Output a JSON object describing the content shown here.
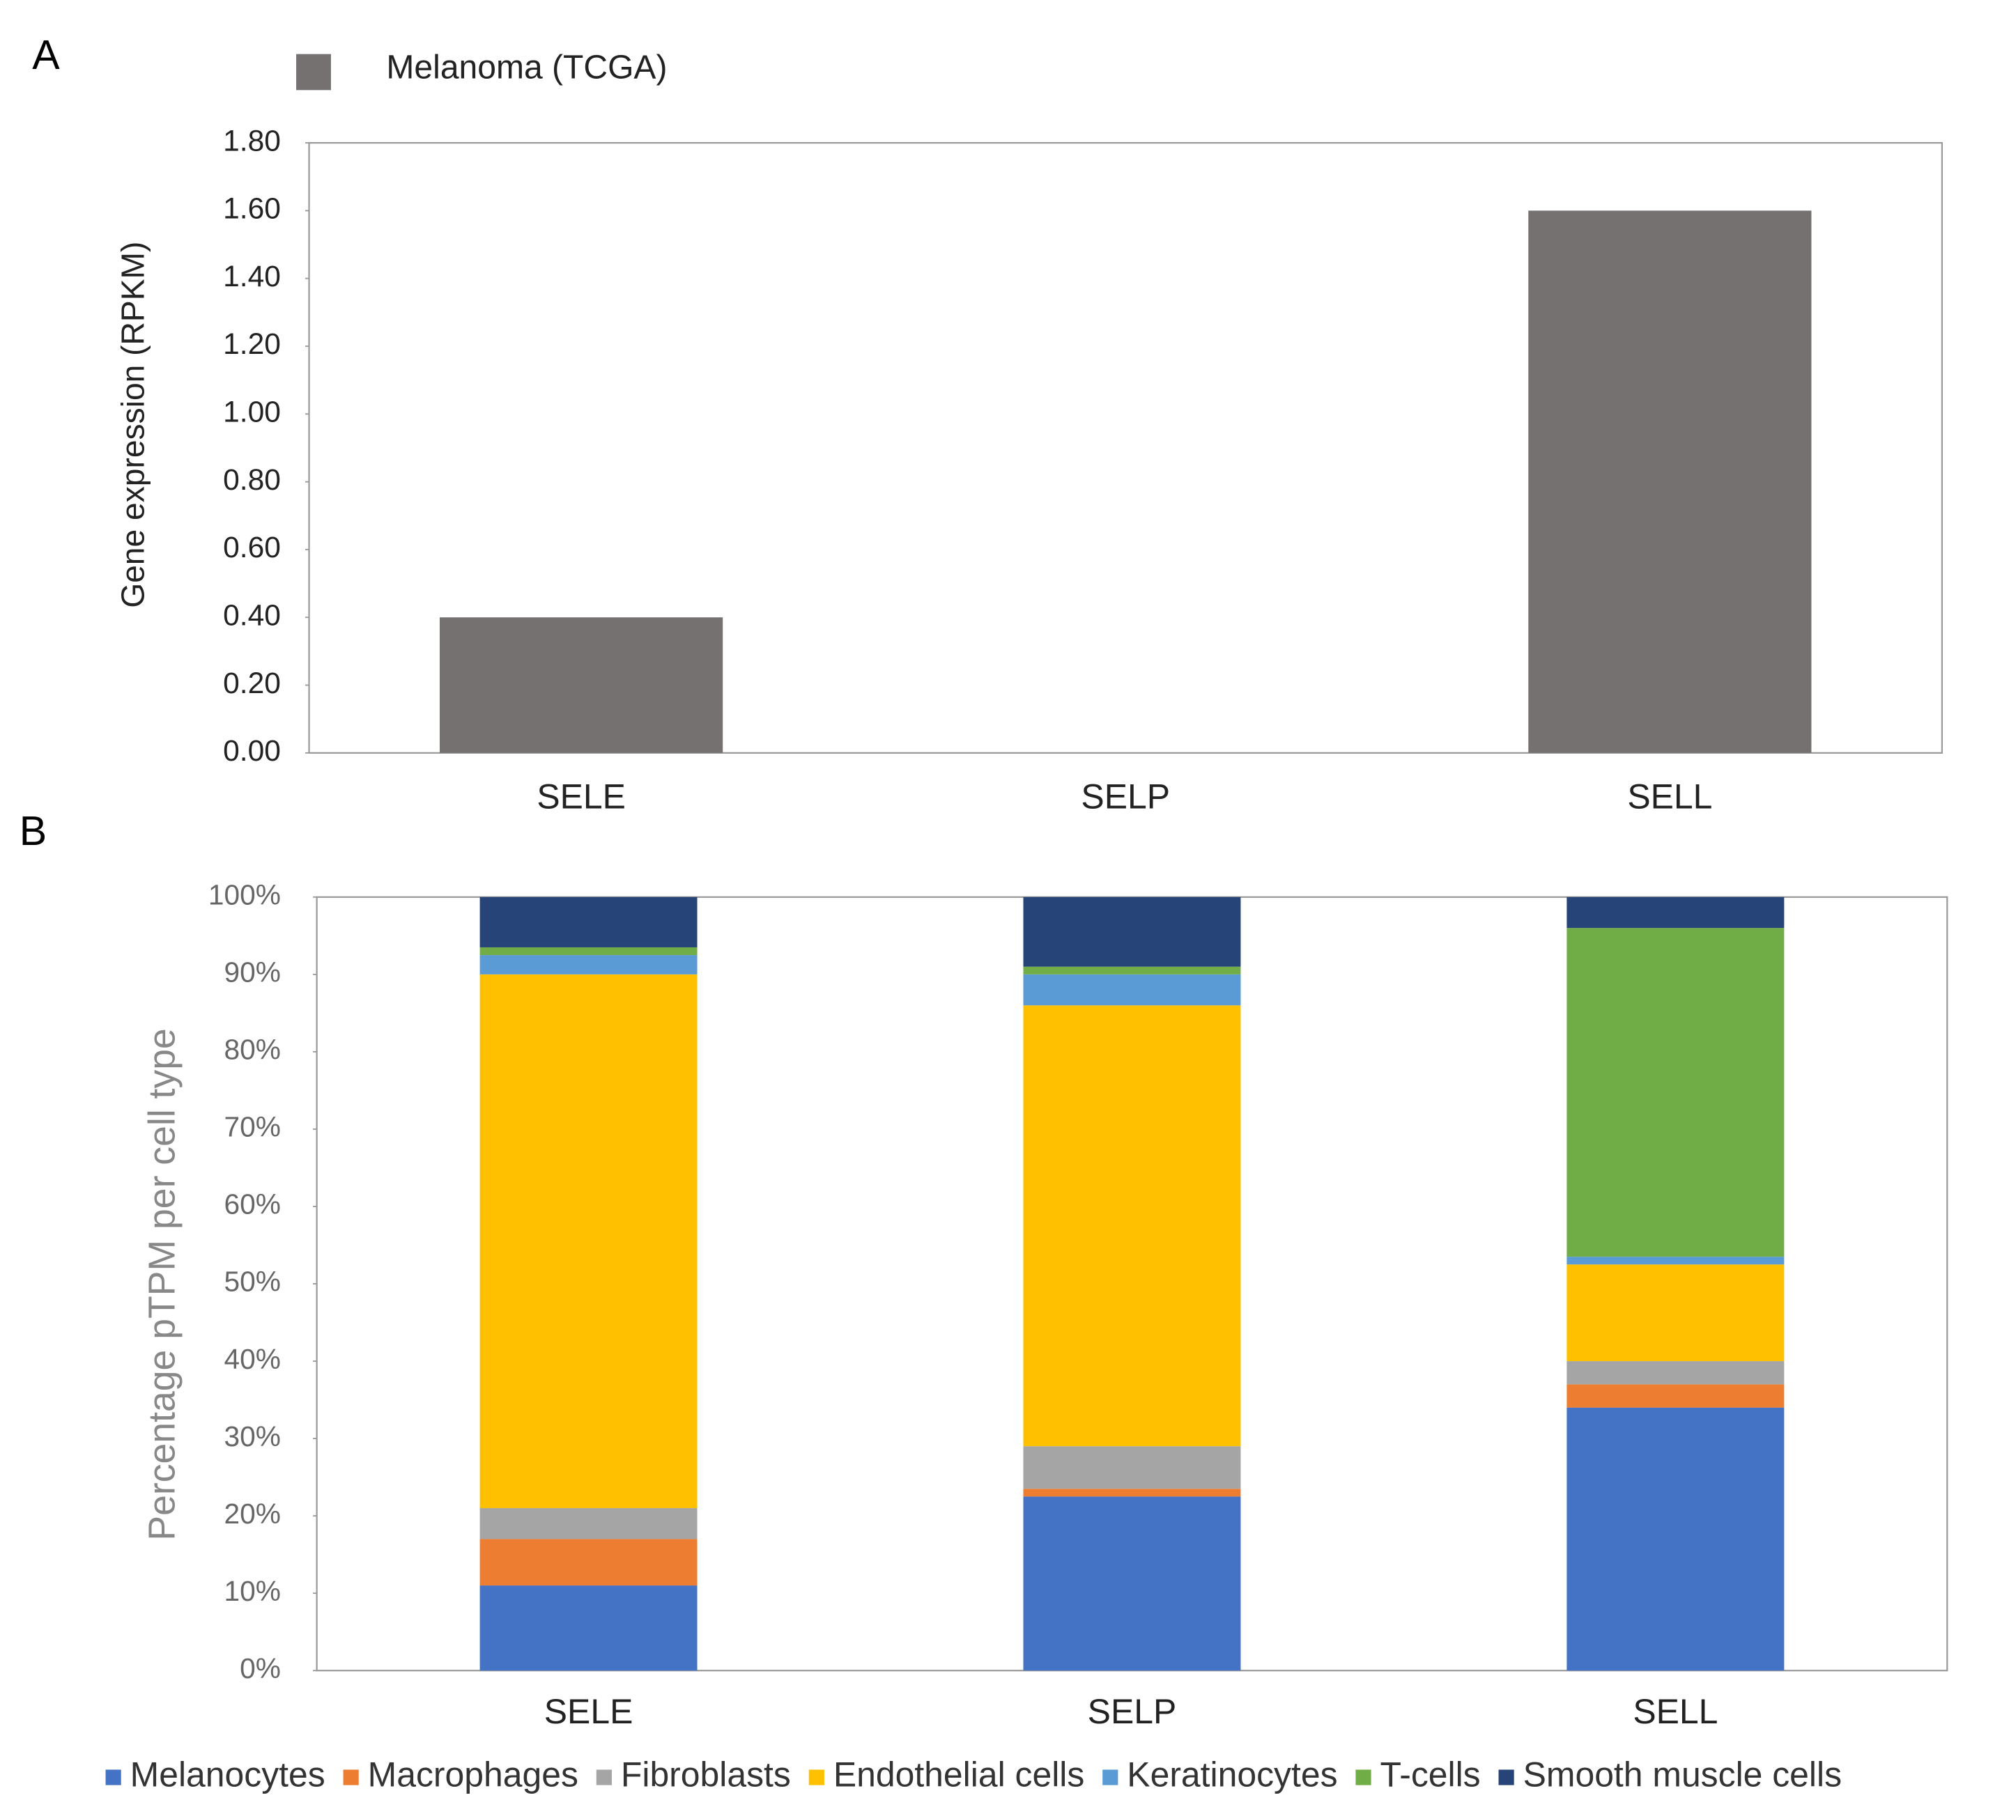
{
  "chart_data": [
    {
      "type": "bar",
      "panel_label": "A",
      "y_label": "Gene expression (RPKM)",
      "categories": [
        "SELE",
        "SELP",
        "SELL"
      ],
      "series": [
        {
          "name": "Melanoma (TCGA)",
          "color": "#767171",
          "values": [
            0.4,
            0.0,
            1.6
          ]
        }
      ],
      "ylim": [
        0,
        1.8
      ],
      "yticks": [
        {
          "value": 0,
          "label": "0.00"
        },
        {
          "value": 0.2,
          "label": "0.20"
        },
        {
          "value": 0.4,
          "label": "0.40"
        },
        {
          "value": 0.6,
          "label": "0.60"
        },
        {
          "value": 0.8,
          "label": "0.80"
        },
        {
          "value": 1,
          "label": "1.00"
        },
        {
          "value": 1.2,
          "label": "1.20"
        },
        {
          "value": 1.4,
          "label": "1.40"
        },
        {
          "value": 1.6,
          "label": "1.60"
        },
        {
          "value": 1.8,
          "label": "1.80"
        }
      ],
      "legend": "top-left"
    },
    {
      "type": "stacked_bar",
      "panel_label": "B",
      "y_label": "Percentage pTPM per cell type",
      "categories": [
        "SELE",
        "SELP",
        "SELL"
      ],
      "series": [
        {
          "name": "Melanocytes",
          "color": "#4472c4",
          "values": [
            11,
            22.5,
            34
          ]
        },
        {
          "name": "Macrophages",
          "color": "#ed7d31",
          "values": [
            6,
            1,
            3
          ]
        },
        {
          "name": "Fibroblasts",
          "color": "#a5a5a5",
          "values": [
            4,
            5.5,
            3
          ]
        },
        {
          "name": "Endothelial cells",
          "color": "#ffc000",
          "values": [
            69,
            57,
            12.5
          ]
        },
        {
          "name": "Keratinocytes",
          "color": "#5b9bd5",
          "values": [
            2.5,
            4,
            1
          ]
        },
        {
          "name": "T-cells",
          "color": "#70ad47",
          "values": [
            1,
            1,
            42.5
          ]
        },
        {
          "name": "Smooth muscle cells",
          "color": "#264478",
          "values": [
            6.5,
            9,
            4
          ]
        }
      ],
      "ylim": [
        0,
        100
      ],
      "yticks": [
        {
          "value": 0,
          "label": "0%"
        },
        {
          "value": 10,
          "label": "10%"
        },
        {
          "value": 20,
          "label": "20%"
        },
        {
          "value": 30,
          "label": "30%"
        },
        {
          "value": 40,
          "label": "40%"
        },
        {
          "value": 50,
          "label": "50%"
        },
        {
          "value": 60,
          "label": "60%"
        },
        {
          "value": 70,
          "label": "70%"
        },
        {
          "value": 80,
          "label": "80%"
        },
        {
          "value": 90,
          "label": "90%"
        },
        {
          "value": 100,
          "label": "100%"
        }
      ],
      "legend": "bottom"
    }
  ]
}
